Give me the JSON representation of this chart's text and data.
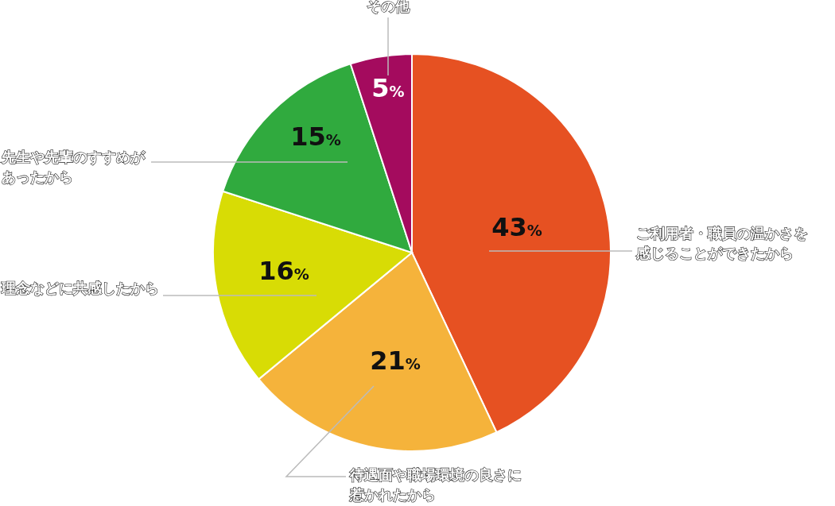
{
  "chart_data": {
    "type": "pie",
    "categories": [
      "ご利用者・職員の温かさを感じることができたから",
      "待遇面や職場環境の良さに惹かれたから",
      "理念などに共感したから",
      "先生や先輩のすすめがあったから",
      "その他"
    ],
    "values": [
      43,
      21,
      16,
      15,
      5
    ],
    "colors": [
      "#e65122",
      "#f5b33b",
      "#d8dc05",
      "#30aa3e",
      "#a40b5e"
    ],
    "value_labels": [
      "43%",
      "21%",
      "16%",
      "15%",
      "5%"
    ]
  }
}
